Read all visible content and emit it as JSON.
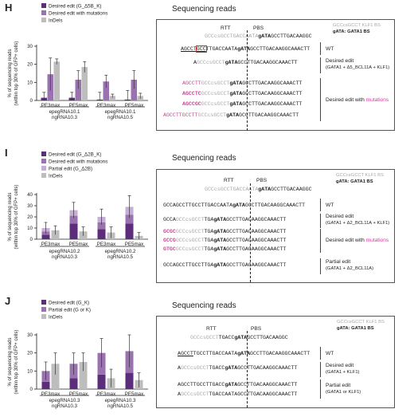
{
  "panels": {
    "H": {
      "letter": "H",
      "chart_data": {
        "type": "bar",
        "ylabel": "% of sequencing reads\n(within top 30% of GFP+ cells)",
        "ylim": [
          0,
          30
        ],
        "yticks": [
          "0",
          "10",
          "20",
          "30"
        ],
        "legend": [
          "Desired edit (G_Δ5B_K)",
          "Desired edit with mutations",
          "InDels"
        ],
        "categories": [
          "PE3max",
          "PE5max",
          "PE3max",
          "PE5max"
        ],
        "groups": [
          "epegRNA10.1\nngRNA10.3",
          "epegRNA10.1\nngRNA10.5"
        ],
        "series": [
          {
            "name": "Desired edit (G_Δ5B_K)",
            "values": [
              1.5,
              1.5,
              0.5,
              0.5
            ]
          },
          {
            "name": "Desired edit with mutations",
            "values": [
              14.5,
              11.5,
              10.5,
              11.5
            ]
          },
          {
            "name": "InDels",
            "values": [
              21.5,
              18.5,
              2.5,
              2.5
            ]
          }
        ],
        "errors": [
          [
            3,
            9,
            1.5
          ],
          [
            3,
            5,
            3
          ],
          [
            4,
            3.5,
            1
          ],
          [
            5,
            5,
            1.5
          ]
        ]
      },
      "seq": {
        "title": "Sequencing reads",
        "rtt": "RTT",
        "pbs": "PBS",
        "bs_grey": "GCCcsGCCT KLF1 BS",
        "bs_dark": "gATA: GATA1 BS",
        "ref": {
          "a": "GCCcsGCCTGA",
          "b": "CCAATA",
          "c": "gATA",
          "d": "GCCTTGACAAGGC"
        },
        "rows": [
          {
            "a": "AGCCT",
            "b": "GCC",
            "c": "TTGACCAATA",
            "d": "gATA",
            "e": "GCCTTGACAAGGCAAACTT",
            "label": "WT"
          },
          {
            "a": "A",
            "b": "GCCcsGCCT",
            "c": "",
            "d": "gATA",
            "e": "GCCTTGACAAGGCAAACTT",
            "label": "Desired edit",
            "label2": "(GATA1 + Δ5_BCL11A + KLF1)"
          },
          {
            "a": "AGCCTT",
            "b": "GCCcsGCCT",
            "d": "gATA",
            "e": "GCCTTGACAAGGCAAACTT"
          },
          {
            "a": "AGCCTC",
            "b": "GCCcsGCCT",
            "d": "gATA",
            "e": "GCCTTGACAAGGCAAACTT",
            "label": "Desired edit with",
            "label_mag": "mutations"
          },
          {
            "a": "AGCCGC",
            "b": "GCCcsGCCT",
            "d": "gATA",
            "e": "GCCTTGACAAGGCAAACTT"
          },
          {
            "a": "AGCCTTGCCTT",
            "b": "GCCcsGCCT",
            "d": "gATA",
            "e": "GCCTTGACAAGGCAAACTT"
          }
        ]
      }
    },
    "I": {
      "letter": "I",
      "chart_data": {
        "type": "bar",
        "ylabel": "% of sequencing reads\n(within top 30% of GFP+ cells)",
        "ylim": [
          0,
          40
        ],
        "yticks": [
          "0",
          "10",
          "20",
          "30",
          "40"
        ],
        "legend": [
          "Desired edit (G_Δ2B_K)",
          "Desired edit with mutations",
          "Partial edit (G_Δ2B)",
          "InDels"
        ],
        "categories": [
          "PE3max",
          "PE5max",
          "PE3max",
          "PE5max"
        ],
        "groups": [
          "epegRNA10.2\nngRNA10.3",
          "epegRNA10.2\nngRNA10.5"
        ],
        "series": [
          {
            "name": "Desired edit (G_Δ2B_K)",
            "values": [
              4,
              14,
              9,
              14
            ]
          },
          {
            "name": "Desired edit with mutations",
            "values": [
              3,
              7,
              6,
              8
            ]
          },
          {
            "name": "Partial edit (G_Δ2B)",
            "values": [
              3,
              5,
              5,
              7
            ]
          },
          {
            "name": "InDels",
            "values": [
              8,
              7,
              6,
              3
            ]
          }
        ],
        "errors": [
          [
            5,
            4
          ],
          [
            7,
            4
          ],
          [
            7,
            5
          ],
          [
            10,
            3
          ]
        ]
      },
      "seq": {
        "title": "Sequencing reads",
        "rtt": "RTT",
        "pbs": "PBS",
        "bs_grey": "GCCcsGCCT KLF1 BS",
        "bs_dark": "gATA: GATA1 BS",
        "ref": {
          "a": "GCCcsGCCTGA",
          "b": "CCAATA",
          "c": "gATA",
          "d": "GCCTTGACAAGGC"
        },
        "rows": [
          {
            "a": "GCCAGCCTTGCCTTGA",
            "b": "",
            "c": "CCAATA",
            "d": "gATA",
            "e": "GCCTTGACAAGGCAAACTT",
            "label": "WT"
          },
          {
            "a": "GCCA",
            "b": "GCCcsGCCT",
            "c": "TGA",
            "d": "gATA",
            "e": "GCCTTGACAAGGCAAACTT",
            "label": "Desired edit",
            "label2": "(GATA1 + Δ2_BCL11A + KLF1)"
          },
          {
            "a": "GCGC",
            "b": "GCCcsGCCT",
            "c": "TGA",
            "d": "gATA",
            "e": "GCCTTGACAAGGCAAACTT"
          },
          {
            "a": "GCCG",
            "b": "GCCcsGCCT",
            "c": "TGA",
            "d": "gATA",
            "e": "GCCTTGACAAGGCAAACTT",
            "label": "Desired edit with",
            "label_mag": "mutations"
          },
          {
            "a": "GTGC",
            "b": "GCCcsGCCT",
            "c": "TGA",
            "d": "gATA",
            "e": "GCCTTGACAAGGCAAACTT"
          },
          {
            "a": "GCCAGCCTTGCCTTGA",
            "b": "",
            "c": "",
            "d": "gATA",
            "e": "GCCTTGACAAGGCAAACTT",
            "label": "Partial edit",
            "label2": "(GATA1 + Δ2_BCL11A)"
          }
        ]
      }
    },
    "J": {
      "letter": "J",
      "chart_data": {
        "type": "bar",
        "ylabel": "% of sequencing reads\n(within top 30% of GFP+ cells)",
        "ylim": [
          0,
          30
        ],
        "yticks": [
          "0",
          "10",
          "20",
          "30"
        ],
        "legend": [
          "Desired edit (G_K)",
          "Partial edit (G or K)",
          "InDels"
        ],
        "categories": [
          "PE3max",
          "PE5max",
          "PE3max",
          "PE5max"
        ],
        "groups": [
          "epegRNA10.3\nngRNA10.3",
          "epegRNA10.3\nngRNA10.5"
        ],
        "series": [
          {
            "name": "Desired edit (G_K)",
            "values": [
              4,
              6,
              8,
              9
            ]
          },
          {
            "name": "Partial edit (G or K)",
            "values": [
              6,
              8,
              12,
              12
            ]
          },
          {
            "name": "InDels",
            "values": [
              14,
              15,
              6,
              5
            ]
          }
        ],
        "errors": [
          [
            5,
            6
          ],
          [
            6,
            5
          ],
          [
            8,
            5
          ],
          [
            9,
            4
          ]
        ]
      },
      "seq": {
        "title": "Sequencing reads",
        "rtt": "RTT",
        "pbs": "PBS",
        "bs_grey": "GCCcsGCCT KLF1 BS",
        "bs_dark": "gATA: GATA1 BS",
        "ref": {
          "a": "GCCcsGCCT",
          "b": "TGACC",
          "c": "gATA",
          "d": "GCCTTGACAAGGC"
        },
        "rows": [
          {
            "a": "AGCCT",
            "b": "TGCCTTGACCAATA",
            "d": "gATA",
            "e": "GCCTTGACAAGGCAAACTT",
            "label": "WT"
          },
          {
            "a": "A",
            "b": "GCCcsGCCT",
            "c": "TGACC",
            "d": "gATA",
            "e": "GCCTTGACAAGGCAAACTT",
            "label": "Desired edit",
            "label2": "(GATA1 + KLF1)"
          },
          {
            "a": "AGCCTTGCCTTGACC",
            "d": "gATA",
            "e": "GCCTTGACAAGGCAAACTT",
            "label": "Partial edit",
            "label2": "(GATA1 or KLF1)"
          },
          {
            "a": "A",
            "b": "GCCcsGCCT",
            "c": "TGACCAATA",
            "d": "",
            "e": "GCCTTGACAAGGCAAACTT"
          }
        ]
      }
    }
  },
  "colors": {
    "dark_purple": "#5b2d7a",
    "mid_purple": "#9a72b0",
    "light_purple": "#c7aed6",
    "grey": "#bdbdbd",
    "magenta": "#d63c9c",
    "red_box": "#c0392b"
  }
}
